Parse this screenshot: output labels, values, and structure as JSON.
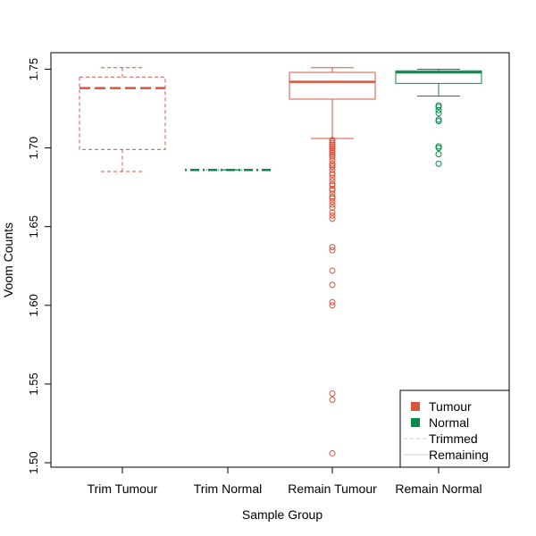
{
  "chart_data": {
    "type": "boxplot",
    "xlabel": "Sample Group",
    "ylabel": "Voom Counts",
    "ylim": [
      1.5,
      1.76
    ],
    "yticks": [
      "1.50",
      "1.55",
      "1.60",
      "1.65",
      "1.70",
      "1.75"
    ],
    "grid": false,
    "legend_position": "bottom-right",
    "colors": {
      "tumour": "#d9543f",
      "normal": "#0a8a4a",
      "trimmed_line": "#cccccc",
      "remaining_line": "#cccccc"
    },
    "legend": [
      {
        "label": "Tumour",
        "kind": "square",
        "color": "#d9543f"
      },
      {
        "label": "Normal",
        "kind": "square",
        "color": "#0a8a4a"
      },
      {
        "label": "Trimmed",
        "kind": "line-dashed",
        "color": "#cccccc"
      },
      {
        "label": "Remaining",
        "kind": "line-solid",
        "color": "#cccccc"
      }
    ],
    "groups": [
      {
        "label": "Trim Tumour",
        "color": "#d9543f",
        "style": "dashed",
        "whisker_low": 1.685,
        "q1": 1.699,
        "median": 1.738,
        "q3": 1.745,
        "whisker_high": 1.751,
        "outliers": []
      },
      {
        "label": "Trim Normal",
        "color": "#0a8a4a",
        "style": "dotdash",
        "whisker_low": 1.686,
        "q1": 1.686,
        "median": 1.686,
        "q3": 1.686,
        "whisker_high": 1.686,
        "outliers": []
      },
      {
        "label": "Remain Tumour",
        "color": "#d9543f",
        "style": "solid",
        "whisker_low": 1.706,
        "q1": 1.731,
        "median": 1.742,
        "q3": 1.748,
        "whisker_high": 1.751,
        "outliers": [
          1.705,
          1.704,
          1.703,
          1.702,
          1.701,
          1.7,
          1.699,
          1.698,
          1.697,
          1.696,
          1.695,
          1.694,
          1.692,
          1.69,
          1.689,
          1.688,
          1.686,
          1.684,
          1.683,
          1.681,
          1.679,
          1.677,
          1.676,
          1.674,
          1.673,
          1.671,
          1.669,
          1.668,
          1.666,
          1.664,
          1.662,
          1.659,
          1.657,
          1.655,
          1.637,
          1.635,
          1.622,
          1.613,
          1.602,
          1.6,
          1.544,
          1.54,
          1.506
        ]
      },
      {
        "label": "Remain Normal",
        "color": "#0a8a4a",
        "style": "solid",
        "whisker_low": 1.733,
        "q1": 1.741,
        "median": 1.748,
        "q3": 1.749,
        "whisker_high": 1.75,
        "outliers": [
          1.727,
          1.726,
          1.724,
          1.722,
          1.718,
          1.717,
          1.701,
          1.7,
          1.696,
          1.69
        ]
      }
    ]
  }
}
